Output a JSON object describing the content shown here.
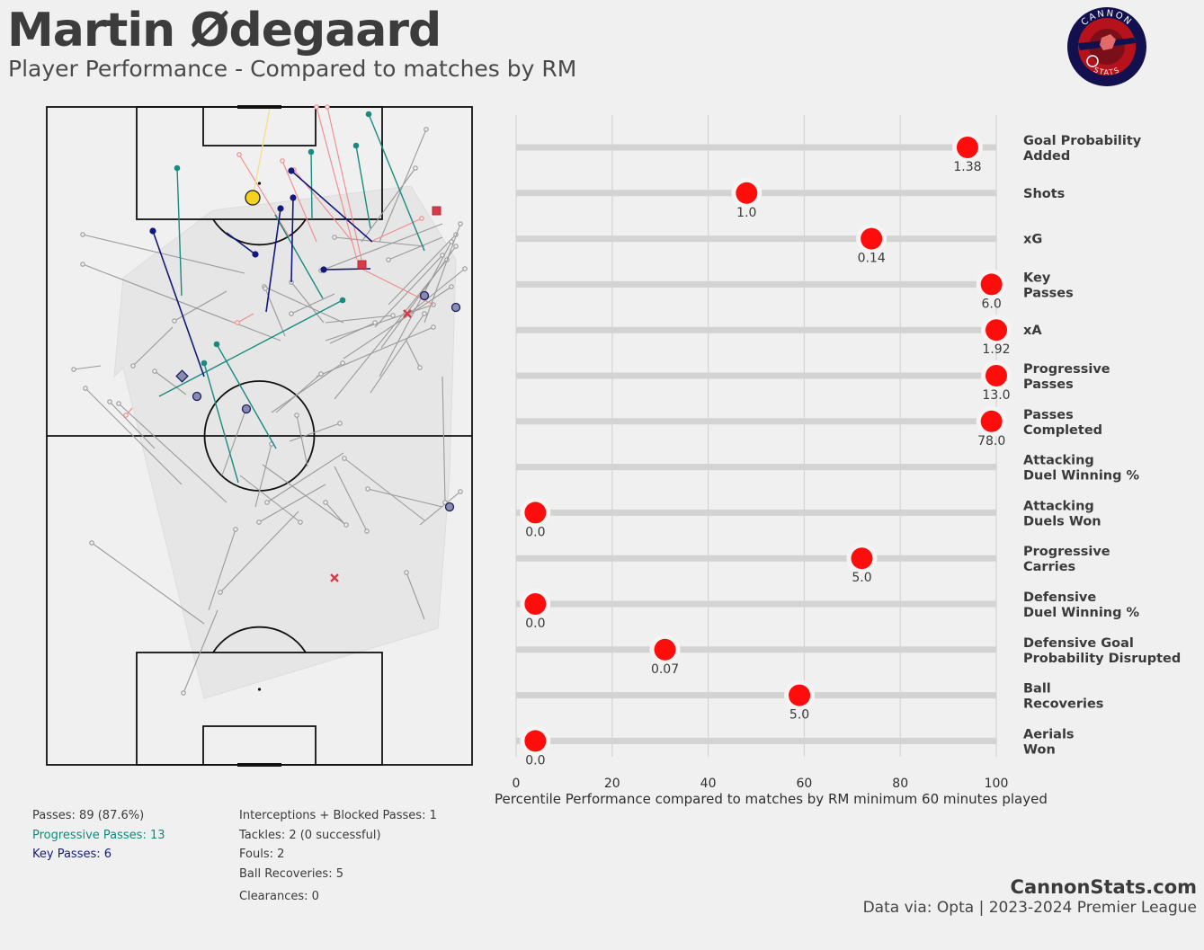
{
  "header": {
    "title": "Martin Ødegaard",
    "subtitle": "Player Performance - Compared to matches by RM"
  },
  "logo": {
    "top_text": "CANNON",
    "bottom_text": "STATS",
    "colors": {
      "outer": "#13104f",
      "ring": "#b5121b",
      "inner": "#13104f"
    }
  },
  "colors": {
    "key_pass": "#13197a",
    "progressive_pass": "#1a8a7f",
    "pass": "#9a9a9a",
    "failed_pass": "#f08a8a",
    "shot": "#f5d21f",
    "defensive": "#d83a47",
    "marker_red": "#ff0d0d",
    "track": "#d3d3d3"
  },
  "pitch_stats": {
    "left": [
      {
        "text": "Passes: 89 (87.6%)",
        "tone": "default"
      },
      {
        "text": "Progressive Passes: 13",
        "tone": "teal"
      },
      {
        "text": "Key Passes: 6",
        "tone": "navy"
      }
    ],
    "right": [
      "Interceptions + Blocked Passes: 1",
      "Tackles: 2 (0 successful)",
      "Fouls: 2",
      "Ball Recoveries: 5",
      "Clearances: 0"
    ]
  },
  "chart_data": {
    "type": "lollipop",
    "orientation": "horizontal",
    "xlabel": "Percentile Performance compared to matches by RM minimum 60 minutes played",
    "xlim": [
      0,
      100
    ],
    "xticks": [
      0,
      20,
      40,
      60,
      80,
      100
    ],
    "grid": "vertical",
    "metrics": [
      {
        "label": [
          "Goal Probability",
          "Added"
        ],
        "percentile": 94,
        "value_label": "1.38"
      },
      {
        "label": [
          "Shots"
        ],
        "percentile": 48,
        "value_label": "1.0"
      },
      {
        "label": [
          "xG"
        ],
        "percentile": 74,
        "value_label": "0.14"
      },
      {
        "label": [
          "Key",
          "Passes"
        ],
        "percentile": 99,
        "value_label": "6.0"
      },
      {
        "label": [
          "xA"
        ],
        "percentile": 100,
        "value_label": "1.92"
      },
      {
        "label": [
          "Progressive",
          "Passes"
        ],
        "percentile": 100,
        "value_label": "13.0"
      },
      {
        "label": [
          "Passes",
          "Completed"
        ],
        "percentile": 99,
        "value_label": "78.0"
      },
      {
        "label": [
          "Attacking",
          "Duel Winning %"
        ],
        "percentile": null,
        "value_label": ""
      },
      {
        "label": [
          "Attacking",
          "Duels Won"
        ],
        "percentile": 4,
        "value_label": "0.0"
      },
      {
        "label": [
          "Progressive",
          "Carries"
        ],
        "percentile": 72,
        "value_label": "5.0"
      },
      {
        "label": [
          "Defensive",
          "Duel Winning %"
        ],
        "percentile": 4,
        "value_label": "0.0"
      },
      {
        "label": [
          "Defensive Goal",
          "Probability Disrupted"
        ],
        "percentile": 31,
        "value_label": "0.07"
      },
      {
        "label": [
          "Ball",
          "Recoveries"
        ],
        "percentile": 59,
        "value_label": "5.0"
      },
      {
        "label": [
          "Aerials",
          "Won"
        ],
        "percentile": 4,
        "value_label": "0.0"
      }
    ]
  },
  "footer": {
    "site": "CannonStats.com",
    "source": "Data via: Opta | 2023-2024 Premier League"
  }
}
